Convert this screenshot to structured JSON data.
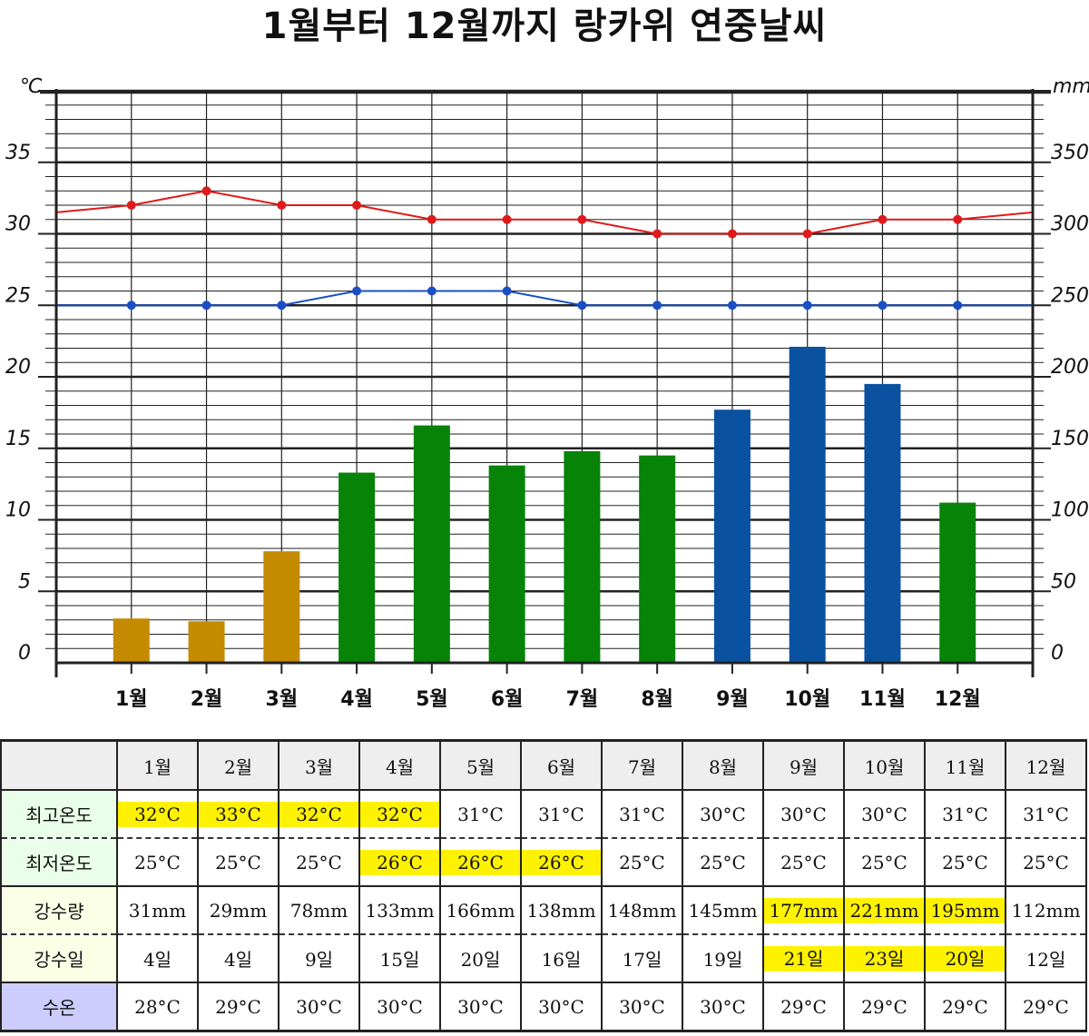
{
  "title": "1월부터 12월까지 랑카위 연중날씨",
  "colors": {
    "high_line": "#e01a1a",
    "low_line": "#1a4fc4",
    "bar_dry": "#c48a00",
    "bar_mid": "#078307",
    "bar_wet": "#0a52a0",
    "label_high_low_bg": "#eaffea",
    "label_rain_bg": "#fbffe6",
    "label_sea_bg": "#ccccff",
    "highlight": "#fff200"
  },
  "chart_data": {
    "type": "bar+line",
    "title": "1월부터 12월까지 랑카위 연중날씨",
    "categories": [
      "1월",
      "2월",
      "3월",
      "4월",
      "5월",
      "6월",
      "7월",
      "8월",
      "9월",
      "10월",
      "11월",
      "12월"
    ],
    "left_unit": "℃",
    "right_unit": "mm",
    "left_ylim": [
      0,
      40
    ],
    "right_ylim": [
      0,
      400
    ],
    "left_ticks": [
      "0",
      "5",
      "10",
      "15",
      "20",
      "25",
      "30",
      "35"
    ],
    "right_ticks": [
      "0",
      "50",
      "100",
      "150",
      "200",
      "250",
      "300",
      "350"
    ],
    "rain_bars": {
      "values": [
        31,
        29,
        78,
        133,
        166,
        138,
        148,
        145,
        177,
        221,
        195,
        112
      ],
      "color_class": [
        "dry",
        "dry",
        "dry",
        "mid",
        "mid",
        "mid",
        "mid",
        "mid",
        "wet",
        "wet",
        "wet",
        "mid"
      ]
    },
    "high_temp": {
      "values": [
        32,
        33,
        32,
        32,
        31,
        31,
        31,
        30,
        30,
        30,
        31,
        31
      ],
      "edge_start": 31.5,
      "edge_end": 31.5
    },
    "low_temp": {
      "values": [
        25,
        25,
        25,
        26,
        26,
        26,
        25,
        25,
        25,
        25,
        25,
        25
      ],
      "edge_start": 25,
      "edge_end": 25
    },
    "grid": true
  },
  "table": {
    "header": [
      "",
      "1월",
      "2월",
      "3월",
      "4월",
      "5월",
      "6월",
      "7월",
      "8월",
      "9월",
      "10월",
      "11월",
      "12월"
    ],
    "rows": [
      {
        "label": "최고온도",
        "bg": "#eaffea",
        "sep": false,
        "cells": [
          "32°C",
          "33°C",
          "32°C",
          "32°C",
          "31°C",
          "31°C",
          "31°C",
          "30°C",
          "30°C",
          "30°C",
          "31°C",
          "31°C"
        ],
        "highlight": [
          true,
          true,
          true,
          true,
          false,
          false,
          false,
          false,
          false,
          false,
          false,
          false
        ]
      },
      {
        "label": "최저온도",
        "bg": "#eaffea",
        "sep": true,
        "cells": [
          "25°C",
          "25°C",
          "25°C",
          "26°C",
          "26°C",
          "26°C",
          "25°C",
          "25°C",
          "25°C",
          "25°C",
          "25°C",
          "25°C"
        ],
        "highlight": [
          false,
          false,
          false,
          true,
          true,
          true,
          false,
          false,
          false,
          false,
          false,
          false
        ]
      },
      {
        "label": "강수량",
        "bg": "#fbffe6",
        "sep": false,
        "cells": [
          "31mm",
          "29mm",
          "78mm",
          "133mm",
          "166mm",
          "138mm",
          "148mm",
          "145mm",
          "177mm",
          "221mm",
          "195mm",
          "112mm"
        ],
        "highlight": [
          false,
          false,
          false,
          false,
          false,
          false,
          false,
          false,
          true,
          true,
          true,
          false
        ]
      },
      {
        "label": "강수일",
        "bg": "#fbffe6",
        "sep": true,
        "cells": [
          "4일",
          "4일",
          "9일",
          "15일",
          "20일",
          "16일",
          "17일",
          "19일",
          "21일",
          "23일",
          "20일",
          "12일"
        ],
        "highlight": [
          false,
          false,
          false,
          false,
          false,
          false,
          false,
          false,
          true,
          true,
          true,
          false
        ]
      },
      {
        "label": "수온",
        "bg": "#ccccff",
        "sep": false,
        "cells": [
          "28°C",
          "29°C",
          "30°C",
          "30°C",
          "30°C",
          "30°C",
          "30°C",
          "30°C",
          "29°C",
          "29°C",
          "29°C",
          "29°C"
        ],
        "highlight": [
          false,
          false,
          false,
          false,
          false,
          false,
          false,
          false,
          false,
          false,
          false,
          false
        ]
      }
    ]
  }
}
